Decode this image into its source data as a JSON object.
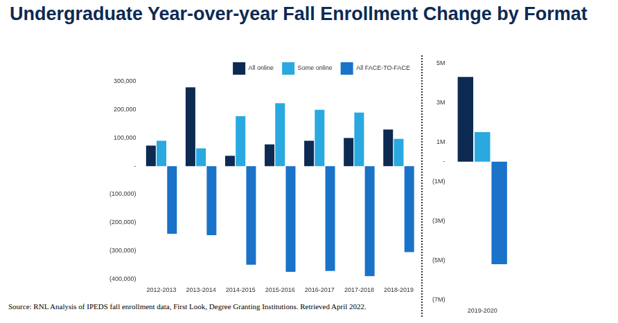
{
  "title": "Undergraduate Year-over-year Fall Enrollment Change by Format",
  "source": "Source: RNL Analysis of IPEDS fall enrollment data, First Look,  Degree Granting Institutions. Retrieved April 2022.",
  "chart_data": [
    {
      "type": "bar",
      "categories": [
        "2012-2013",
        "2013-2014",
        "2014-2015",
        "2015-2016",
        "2016-2017",
        "2017-2018",
        "2018-2019"
      ],
      "series": [
        {
          "name": "All online",
          "color": "#0d2a52",
          "values": [
            73000,
            280000,
            37000,
            77000,
            90000,
            100000,
            130000
          ]
        },
        {
          "name": "Some online",
          "color": "#2aa8e0",
          "values": [
            90000,
            63000,
            177000,
            223000,
            200000,
            190000,
            97000
          ]
        },
        {
          "name": "All FACE-TO-FACE",
          "color": "#1a72c9",
          "values": [
            -240000,
            -245000,
            -350000,
            -375000,
            -372000,
            -390000,
            -305000
          ]
        }
      ],
      "ylim": [
        -400000,
        300000
      ],
      "yticks": [
        {
          "value": 300000,
          "label": "300,000"
        },
        {
          "value": 200000,
          "label": "200,000"
        },
        {
          "value": 100000,
          "label": "100,000"
        },
        {
          "value": 0,
          "label": "-"
        },
        {
          "value": -100000,
          "label": "(100,000)"
        },
        {
          "value": -200000,
          "label": "(200,000)"
        },
        {
          "value": -300000,
          "label": "(300,000)"
        },
        {
          "value": -400000,
          "label": "(400,000)"
        }
      ],
      "grid": false,
      "legend": "top"
    },
    {
      "type": "bar",
      "categories": [
        "2019-2020"
      ],
      "series": [
        {
          "name": "All online",
          "color": "#0d2a52",
          "values": [
            4300000
          ]
        },
        {
          "name": "Some online",
          "color": "#2aa8e0",
          "values": [
            1500000
          ]
        },
        {
          "name": "All FACE-TO-FACE",
          "color": "#1a72c9",
          "values": [
            -5200000
          ]
        }
      ],
      "ylim": [
        -7000000,
        5000000
      ],
      "yticks": [
        {
          "value": 5000000,
          "label": "5M"
        },
        {
          "value": 3000000,
          "label": "3M"
        },
        {
          "value": 1000000,
          "label": "1M"
        },
        {
          "value": 0,
          "label": "-"
        },
        {
          "value": -1000000,
          "label": "(1M)"
        },
        {
          "value": -3000000,
          "label": "(3M)"
        },
        {
          "value": -5000000,
          "label": "(5M)"
        },
        {
          "value": -7000000,
          "label": "(7M)"
        }
      ],
      "grid": false
    }
  ]
}
